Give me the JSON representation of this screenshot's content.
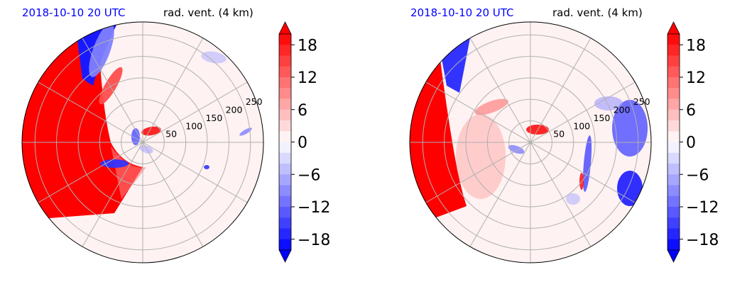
{
  "chart_data": [
    {
      "type": "heatmap",
      "projection": "polar",
      "title_left": "2018-10-10 20 UTC",
      "title_right": "rad. vent. (4 km)",
      "r_ticks": [
        50,
        100,
        150,
        200,
        250
      ],
      "r_max": 280,
      "theta_grid_deg": 30,
      "grid": true,
      "colorbar": {
        "ticks": [
          18,
          12,
          6,
          0,
          -6,
          -12,
          -18
        ],
        "tick_labels": [
          "18",
          "12",
          "6",
          "0",
          "−6",
          "−12",
          "−18"
        ],
        "range": [
          -20,
          20
        ],
        "levels": 20,
        "extend": "both",
        "cmap": "bwr"
      },
      "features": [
        {
          "kind": "positive",
          "value": 20,
          "desc": "strong inbound/outbound band on west edge"
        },
        {
          "kind": "negative",
          "value": -18,
          "desc": "blue band north-west"
        },
        {
          "kind": "positive",
          "value": 16,
          "desc": "small dipole near center"
        },
        {
          "kind": "negative",
          "value": -12,
          "desc": "small dipole near center"
        }
      ]
    },
    {
      "type": "heatmap",
      "projection": "polar",
      "title_left": "2018-10-10 20 UTC",
      "title_right": "rad. vent. (4 km)",
      "r_ticks": [
        50,
        100,
        150,
        200,
        250
      ],
      "r_max": 280,
      "theta_grid_deg": 30,
      "grid": true,
      "colorbar": {
        "ticks": [
          18,
          12,
          6,
          0,
          -6,
          -12,
          -18
        ],
        "tick_labels": [
          "18",
          "12",
          "6",
          "0",
          "−6",
          "−12",
          "−18"
        ],
        "range": [
          -20,
          20
        ],
        "levels": 20,
        "extend": "both",
        "cmap": "bwr"
      },
      "features": [
        {
          "kind": "positive",
          "value": 20,
          "desc": "red band on west edge"
        },
        {
          "kind": "negative",
          "value": -16,
          "desc": "blue band north-west"
        },
        {
          "kind": "positive",
          "value": 18,
          "desc": "red core near center"
        },
        {
          "kind": "negative",
          "value": -18,
          "desc": "blue speckles on east side"
        }
      ]
    }
  ],
  "colors": {
    "title_left": "#0000ff",
    "title_right": "#000000",
    "max_red": "#ff0000",
    "max_blue": "#0000ff",
    "grid": "#b0b0b0",
    "background_tint": "#fff2f2"
  }
}
